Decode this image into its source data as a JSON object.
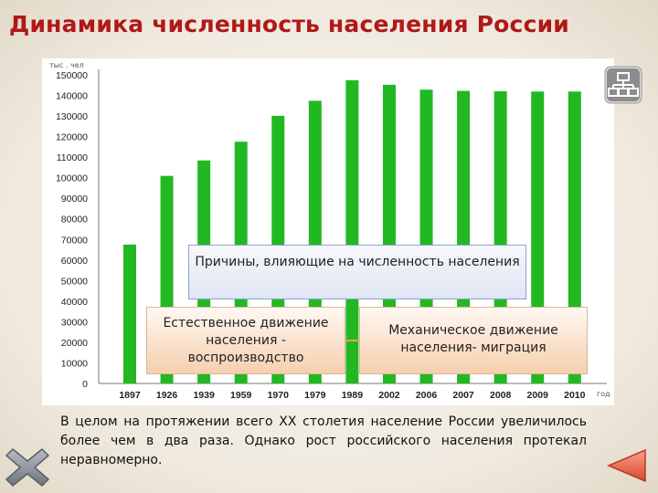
{
  "title": "Динамика численность населения России",
  "chart_data": {
    "type": "bar",
    "yunit": "тыс . чел",
    "xunit": "год",
    "categories": [
      "1897",
      "1926",
      "1939",
      "1959",
      "1970",
      "1979",
      "1989",
      "2002",
      "2006",
      "2007",
      "2008",
      "2009",
      "2010"
    ],
    "values": [
      67500,
      100900,
      108400,
      117500,
      130100,
      137400,
      147400,
      145200,
      142800,
      142200,
      142000,
      141900,
      141900
    ],
    "ylim": [
      0,
      150000
    ],
    "yticks": [
      0,
      10000,
      20000,
      30000,
      40000,
      50000,
      60000,
      70000,
      80000,
      90000,
      100000,
      110000,
      120000,
      130000,
      140000,
      150000
    ],
    "bar_color": "#22b822",
    "grid": false
  },
  "boxes": {
    "causes": "Причины, влияющие на численность населения",
    "natural": "Естественное движение населения - воспроизводство",
    "mechanical": "Механическое движение населения- миграция"
  },
  "summary": "В целом на протяжении всего ХХ столетия население России увеличилось более чем в два раза. Однако рост российского населения протекал неравномерно.",
  "icons": {
    "top_right": "sitemap-icon",
    "bottom_left": "close-icon",
    "bottom_right": "back-arrow-icon"
  }
}
